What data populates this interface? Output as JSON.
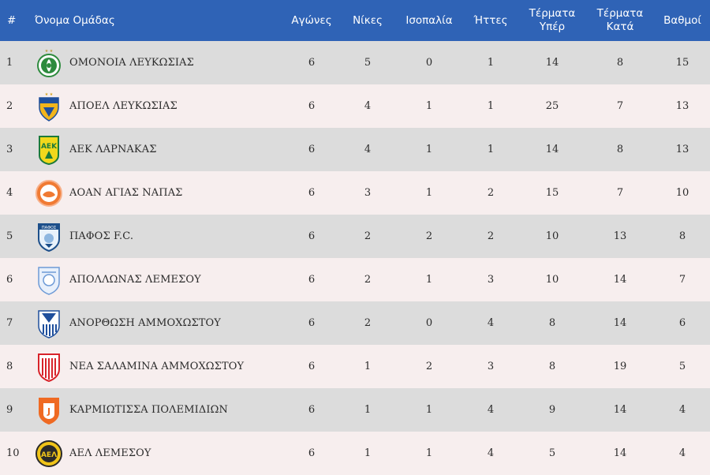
{
  "headers": {
    "rank": "#",
    "team": "Όνομα Ομάδας",
    "played": "Αγώνες",
    "wins": "Νίκες",
    "draws": "Ισοπαλία",
    "losses": "Ήττες",
    "gf_line1": "Τέρματα",
    "gf_line2": "Υπέρ",
    "ga_line1": "Τέρματα",
    "ga_line2": "Κατά",
    "points": "Βαθμοί"
  },
  "rows": [
    {
      "rank": "1",
      "team": "ΟΜΟΝΟΙΑ ΛΕΥΚΩΣΙΑΣ",
      "logo": "omonoia-crest-icon",
      "played": "6",
      "wins": "5",
      "draws": "0",
      "losses": "1",
      "gf": "14",
      "ga": "8",
      "points": "15"
    },
    {
      "rank": "2",
      "team": "ΑΠΟΕΛ ΛΕΥΚΩΣΙΑΣ",
      "logo": "apoel-crest-icon",
      "played": "6",
      "wins": "4",
      "draws": "1",
      "losses": "1",
      "gf": "25",
      "ga": "7",
      "points": "13"
    },
    {
      "rank": "3",
      "team": "ΑΕΚ ΛΑΡΝΑΚΑΣ",
      "logo": "aek-crest-icon",
      "played": "6",
      "wins": "4",
      "draws": "1",
      "losses": "1",
      "gf": "14",
      "ga": "8",
      "points": "13"
    },
    {
      "rank": "4",
      "team": "ΑΟΑΝ ΑΓΙΑΣ ΝΑΠΑΣ",
      "logo": "aoan-crest-icon",
      "played": "6",
      "wins": "3",
      "draws": "1",
      "losses": "2",
      "gf": "15",
      "ga": "7",
      "points": "10"
    },
    {
      "rank": "5",
      "team": "ΠΑΦΟΣ F.C.",
      "logo": "pafos-crest-icon",
      "played": "6",
      "wins": "2",
      "draws": "2",
      "losses": "2",
      "gf": "10",
      "ga": "13",
      "points": "8"
    },
    {
      "rank": "6",
      "team": "ΑΠΟΛΛΩΝΑΣ ΛΕΜΕΣΟΥ",
      "logo": "apollon-crest-icon",
      "played": "6",
      "wins": "2",
      "draws": "1",
      "losses": "3",
      "gf": "10",
      "ga": "14",
      "points": "7"
    },
    {
      "rank": "7",
      "team": "ΑΝΟΡΘΩΣΗ ΑΜΜΟΧΩΣΤΟΥ",
      "logo": "anorthosis-crest-icon",
      "played": "6",
      "wins": "2",
      "draws": "0",
      "losses": "4",
      "gf": "8",
      "ga": "14",
      "points": "6"
    },
    {
      "rank": "8",
      "team": "ΝΕΑ ΣΑΛΑΜΙΝΑ ΑΜΜΟΧΩΣΤΟΥ",
      "logo": "nea-salamina-crest-icon",
      "played": "6",
      "wins": "1",
      "draws": "2",
      "losses": "3",
      "gf": "8",
      "ga": "19",
      "points": "5"
    },
    {
      "rank": "9",
      "team": "ΚΑΡΜΙΩΤΙΣΣΑ ΠΟΛΕΜΙΔΙΩΝ",
      "logo": "karmiotissa-crest-icon",
      "played": "6",
      "wins": "1",
      "draws": "1",
      "losses": "4",
      "gf": "9",
      "ga": "14",
      "points": "4"
    },
    {
      "rank": "10",
      "team": "ΑΕΛ ΛΕΜΕΣΟΥ",
      "logo": "ael-crest-icon",
      "played": "6",
      "wins": "1",
      "draws": "1",
      "losses": "4",
      "gf": "5",
      "ga": "14",
      "points": "4"
    }
  ],
  "colors": {
    "header_bg": "#2f63b6",
    "row_odd": "#dcdcdc",
    "row_even": "#f7eeee"
  }
}
